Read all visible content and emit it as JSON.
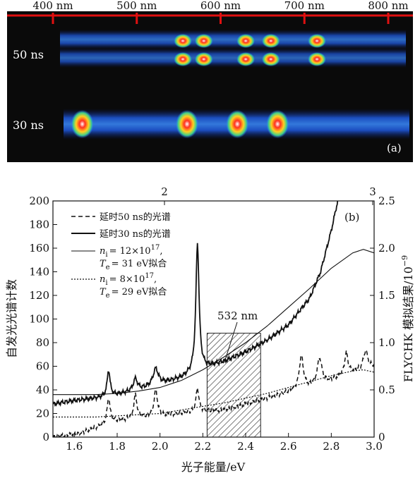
{
  "panel_a": {
    "wavelength_ticks": [
      "400 nm",
      "500 nm",
      "600 nm",
      "700 nm",
      "800 nm"
    ],
    "rows": [
      {
        "label": "50 ns",
        "hotspots_nm": [
          555,
          580,
          630,
          660,
          715
        ]
      },
      {
        "label": "30 ns",
        "hotspots_nm": [
          435,
          560,
          620,
          668
        ]
      }
    ],
    "panel_label": "(a)",
    "colors": {
      "background": "#0a0a0a",
      "ruler": "#e01010",
      "glow": "#2a7bff"
    }
  },
  "chart_data": {
    "type": "line",
    "panel_label": "(b)",
    "xlabel": "光子能量/eV",
    "ylabel": "自发光光谱计数",
    "y2label": "FLYCHK 模拟结果/10",
    "y2label_exp": "−9",
    "xlim": [
      1.5,
      3.0
    ],
    "ylim": [
      0,
      200
    ],
    "y2lim": [
      0,
      2.5
    ],
    "x_ticks": [
      "1.6",
      "1.8",
      "2.0",
      "2.2",
      "2.4",
      "2.6",
      "2.8",
      "3.0"
    ],
    "y_ticks": [
      "0",
      "20",
      "40",
      "60",
      "80",
      "100",
      "120",
      "140",
      "160",
      "180",
      "200"
    ],
    "y2_ticks": [
      "0",
      "0.5",
      "1.0",
      "1.5",
      "2.0",
      "2.5"
    ],
    "top_ticks": [
      "2",
      "3"
    ],
    "legend": {
      "dashed": "延时50 ns的光谱",
      "solid": "延时30 ns的光谱",
      "fit1_line1": "= 12×10",
      "fit1_exp": "17",
      "fit1_line2": "= 31 eV拟合",
      "fit2_line1": "=  8×10",
      "fit2_exp": "17",
      "fit2_line2": "= 29 eV拟合",
      "n_sym": "n",
      "n_sub": "i",
      "t_sym": "T",
      "t_sub": "e"
    },
    "annotation": {
      "text": "532 nm",
      "x": 2.3,
      "y": 63
    },
    "hatched_band": {
      "x": [
        2.22,
        2.47
      ],
      "y": [
        0,
        88
      ]
    },
    "series": [
      {
        "style": "dashed",
        "baseline": [
          [
            1.5,
            0
          ],
          [
            1.62,
            3
          ],
          [
            1.7,
            8
          ],
          [
            1.78,
            13
          ],
          [
            1.85,
            15
          ],
          [
            2.0,
            18
          ],
          [
            2.1,
            20
          ],
          [
            2.2,
            22
          ],
          [
            2.3,
            23
          ],
          [
            2.4,
            28
          ],
          [
            2.5,
            33
          ],
          [
            2.6,
            38
          ],
          [
            2.7,
            42
          ],
          [
            2.8,
            48
          ],
          [
            2.9,
            55
          ],
          [
            3.0,
            60
          ]
        ],
        "peaks": [
          [
            1.76,
            22,
            0.008
          ],
          [
            1.885,
            20,
            0.009
          ],
          [
            1.98,
            22,
            0.01
          ],
          [
            2.175,
            20,
            0.008
          ],
          [
            2.66,
            28,
            0.012
          ],
          [
            2.745,
            22,
            0.013
          ],
          [
            2.87,
            18,
            0.01
          ],
          [
            2.96,
            15,
            0.012
          ]
        ]
      },
      {
        "style": "solid",
        "baseline": [
          [
            1.5,
            28
          ],
          [
            1.6,
            31
          ],
          [
            1.7,
            33
          ],
          [
            1.8,
            36
          ],
          [
            1.9,
            40
          ],
          [
            2.0,
            45
          ],
          [
            2.1,
            50
          ],
          [
            2.2,
            58
          ],
          [
            2.3,
            64
          ],
          [
            2.4,
            72
          ],
          [
            2.5,
            82
          ],
          [
            2.6,
            95
          ],
          [
            2.7,
            118
          ],
          [
            2.75,
            140
          ],
          [
            2.8,
            175
          ],
          [
            2.83,
            200
          ]
        ],
        "peaks": [
          [
            1.76,
            22,
            0.008
          ],
          [
            1.885,
            10,
            0.012
          ],
          [
            1.98,
            14,
            0.015
          ],
          [
            2.175,
            108,
            0.009
          ]
        ]
      },
      {
        "style": "fit-solid",
        "points": [
          [
            1.5,
            36
          ],
          [
            1.6,
            36
          ],
          [
            1.7,
            36
          ],
          [
            1.8,
            37
          ],
          [
            1.9,
            39
          ],
          [
            2.0,
            42
          ],
          [
            2.1,
            48
          ],
          [
            2.2,
            57
          ],
          [
            2.3,
            68
          ],
          [
            2.4,
            80
          ],
          [
            2.5,
            94
          ],
          [
            2.6,
            110
          ],
          [
            2.7,
            126
          ],
          [
            2.8,
            143
          ],
          [
            2.9,
            156
          ],
          [
            2.95,
            159
          ],
          [
            3.0,
            156
          ]
        ]
      },
      {
        "style": "fit-dotted",
        "points": [
          [
            1.5,
            17
          ],
          [
            1.6,
            17
          ],
          [
            1.7,
            17
          ],
          [
            1.8,
            18
          ],
          [
            1.9,
            19
          ],
          [
            2.0,
            20
          ],
          [
            2.1,
            23
          ],
          [
            2.2,
            26
          ],
          [
            2.3,
            29
          ],
          [
            2.4,
            33
          ],
          [
            2.5,
            37
          ],
          [
            2.6,
            42
          ],
          [
            2.7,
            47
          ],
          [
            2.8,
            52
          ],
          [
            2.9,
            56
          ],
          [
            2.95,
            57
          ],
          [
            3.0,
            55
          ]
        ]
      }
    ]
  }
}
